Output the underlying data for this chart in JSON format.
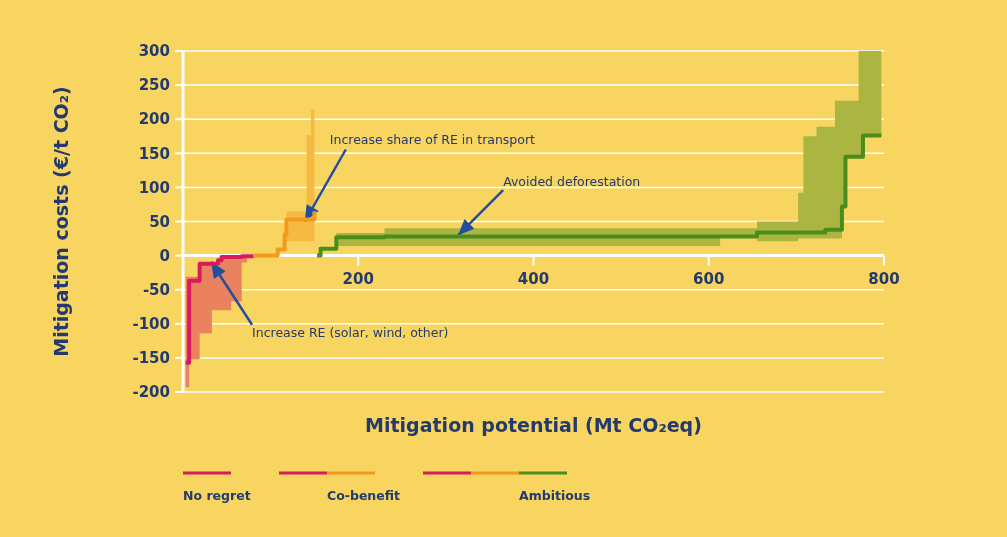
{
  "chart_data": {
    "type": "step",
    "xlabel": "Mitigation potential (Mt CO₂eq)",
    "ylabel": "Mitigation costs (€/t CO₂)",
    "xlim": [
      0,
      800
    ],
    "xticks": [
      200,
      400,
      600,
      800
    ],
    "ylim": [
      -200,
      300
    ],
    "yticks": [
      -200,
      -150,
      -100,
      -50,
      0,
      50,
      100,
      150,
      200,
      250,
      300
    ],
    "grid": "y",
    "legend": "bottom",
    "series": [
      {
        "name": "No regret",
        "color": "#d81b5c",
        "x": [
          3,
          7,
          19,
          33,
          40,
          44,
          55,
          67,
          73,
          80
        ],
        "values": [
          -157,
          -37,
          -12,
          -12,
          -7,
          -2,
          -2,
          -1,
          -1,
          0
        ],
        "lower": [
          -193,
          -152,
          -114,
          -80,
          -80,
          -80,
          -67,
          -10,
          -2,
          0
        ],
        "upper": [
          -31,
          -31,
          -10,
          -10,
          -5,
          0,
          0,
          0,
          0,
          0
        ]
      },
      {
        "name": "Co-benefit",
        "color": "#f39a1e",
        "x": [
          80,
          108,
          116,
          118,
          141,
          146,
          150
        ],
        "values": [
          0,
          9,
          31,
          53,
          53,
          53,
          65
        ],
        "lower": [
          0,
          9,
          31,
          21,
          21,
          21,
          21
        ],
        "upper": [
          0,
          9,
          31,
          65,
          177,
          214,
          214
        ]
      },
      {
        "name": "Ambitious",
        "color": "#4b8d1d",
        "x": [
          153,
          157,
          175,
          230,
          613,
          655,
          702,
          708,
          723,
          733,
          744,
          752,
          756,
          771,
          776,
          797
        ],
        "values": [
          0,
          10,
          27,
          28,
          28,
          34,
          34,
          34,
          34,
          38,
          38,
          72,
          145,
          145,
          176,
          176
        ],
        "lower": [
          0,
          10,
          14,
          14,
          28,
          21,
          25,
          25,
          25,
          25,
          25,
          72,
          145,
          145,
          176,
          176
        ],
        "upper": [
          0,
          10,
          33,
          40,
          40,
          50,
          92,
          175,
          189,
          189,
          227,
          227,
          227,
          300,
          300,
          300
        ]
      }
    ],
    "annotations": [
      {
        "text": "Increase share of RE in transport",
        "x": 139,
        "y": 50
      },
      {
        "text": "Avoided deforestation",
        "x": 314,
        "y": 30
      },
      {
        "text": "Increase RE (solar, wind, other)",
        "x": 32,
        "y": -9
      }
    ]
  }
}
